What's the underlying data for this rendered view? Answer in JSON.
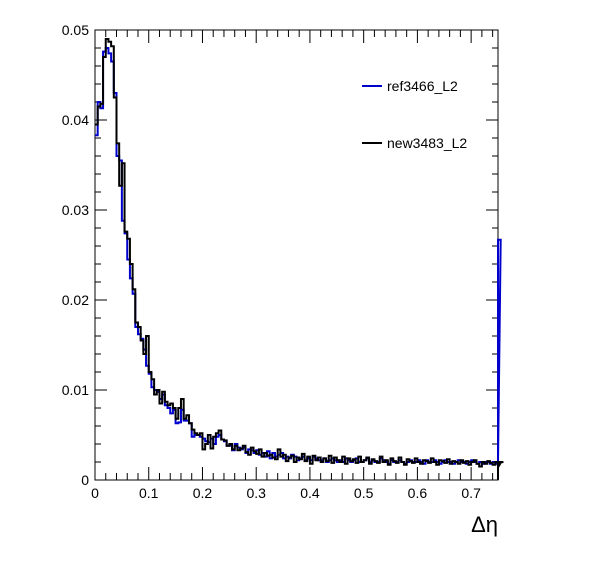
{
  "chart_data": {
    "type": "histogram",
    "title": "",
    "xlabel": "Δη",
    "ylabel": "",
    "xlim": [
      0,
      0.75
    ],
    "ylim": [
      0,
      0.05
    ],
    "bin_width": 0.005,
    "x_tick_labels": [
      "0",
      "0.1",
      "0.2",
      "0.3",
      "0.4",
      "0.5",
      "0.6",
      "0.7"
    ],
    "x_tick_values": [
      0,
      0.1,
      0.2,
      0.3,
      0.4,
      0.5,
      0.6,
      0.7
    ],
    "y_tick_labels": [
      "0",
      "0.01",
      "0.02",
      "0.03",
      "0.04",
      "0.05"
    ],
    "y_tick_values": [
      0,
      0.01,
      0.02,
      0.03,
      0.04,
      0.05
    ],
    "legend_position": "top-right",
    "series": [
      {
        "name": "ref3466_L2",
        "color": "#0000cc",
        "values": [
          0.0383,
          0.042,
          0.0413,
          0.0476,
          0.048,
          0.0474,
          0.0465,
          0.043,
          0.036,
          0.0355,
          0.0288,
          0.0274,
          0.0245,
          0.0224,
          0.0207,
          0.017,
          0.0162,
          0.0157,
          0.0145,
          0.0127,
          0.0118,
          0.0103,
          0.01,
          0.0098,
          0.009,
          0.0095,
          0.0083,
          0.008,
          0.0074,
          0.0078,
          0.0063,
          0.0064,
          0.0078,
          0.0066,
          0.0066,
          0.0063,
          0.0048,
          0.005,
          0.005,
          0.0048,
          0.0046,
          0.0043,
          0.0042,
          0.0046,
          0.004,
          0.0048,
          0.005,
          0.0045,
          0.0043,
          0.0038,
          0.0038,
          0.0033,
          0.004,
          0.0036,
          0.0034,
          0.0036,
          0.003,
          0.0034,
          0.0033,
          0.003,
          0.0033,
          0.0028,
          0.003,
          0.0026,
          0.0032,
          0.0024,
          0.003,
          0.0026,
          0.0028,
          0.003,
          0.0024,
          0.0026,
          0.0024,
          0.0028,
          0.0026,
          0.0022,
          0.0024,
          0.0026,
          0.0022,
          0.0024,
          0.0022,
          0.0026,
          0.0024,
          0.0022,
          0.0022,
          0.0024,
          0.002,
          0.0022,
          0.0024,
          0.0022,
          0.002,
          0.0022,
          0.002,
          0.0024,
          0.0022,
          0.002,
          0.0022,
          0.0024,
          0.002,
          0.002,
          0.0022,
          0.0024,
          0.002,
          0.0022,
          0.002,
          0.002,
          0.0024,
          0.0022,
          0.002,
          0.0018,
          0.0022,
          0.002,
          0.002,
          0.0022,
          0.002,
          0.0018,
          0.002,
          0.0022,
          0.002,
          0.002,
          0.0022,
          0.002,
          0.0018,
          0.0022,
          0.002,
          0.002,
          0.0022,
          0.002,
          0.0018,
          0.002,
          0.0022,
          0.002,
          0.002,
          0.0018,
          0.002,
          0.0022,
          0.002,
          0.002,
          0.0018,
          0.002,
          0.0022,
          0.002,
          0.0018,
          0.002,
          0.0018,
          0.002,
          0.002,
          0.0018,
          0.002,
          0.0018,
          0.002,
          0.0267
        ]
      },
      {
        "name": "new3483_L2",
        "color": "#000000",
        "values": [
          0.0395,
          0.0415,
          0.0418,
          0.047,
          0.049,
          0.0487,
          0.0482,
          0.0425,
          0.0374,
          0.0327,
          0.0352,
          0.0276,
          0.0268,
          0.024,
          0.0212,
          0.0175,
          0.017,
          0.0155,
          0.014,
          0.016,
          0.012,
          0.0112,
          0.0095,
          0.01,
          0.0085,
          0.0098,
          0.0087,
          0.0083,
          0.0085,
          0.008,
          0.0068,
          0.008,
          0.009,
          0.0068,
          0.0072,
          0.0063,
          0.0056,
          0.0052,
          0.005,
          0.0052,
          0.0034,
          0.004,
          0.005,
          0.0035,
          0.0048,
          0.0052,
          0.0055,
          0.0045,
          0.0044,
          0.0038,
          0.004,
          0.0034,
          0.0038,
          0.0033,
          0.0035,
          0.0038,
          0.0031,
          0.0028,
          0.0036,
          0.0032,
          0.0029,
          0.0034,
          0.0026,
          0.003,
          0.0027,
          0.0028,
          0.0025,
          0.0023,
          0.0034,
          0.0026,
          0.0028,
          0.0021,
          0.0025,
          0.0027,
          0.002,
          0.0025,
          0.0023,
          0.0029,
          0.0021,
          0.0026,
          0.0018,
          0.0027,
          0.0022,
          0.0025,
          0.002,
          0.0024,
          0.0021,
          0.0027,
          0.0019,
          0.0025,
          0.0022,
          0.002,
          0.0026,
          0.0018,
          0.0024,
          0.0021,
          0.0023,
          0.0019,
          0.0026,
          0.002,
          0.0022,
          0.0025,
          0.0018,
          0.0023,
          0.0021,
          0.0019,
          0.0026,
          0.002,
          0.0022,
          0.0017,
          0.0024,
          0.0021,
          0.0019,
          0.0025,
          0.002,
          0.0017,
          0.0023,
          0.0021,
          0.0019,
          0.0024,
          0.002,
          0.0018,
          0.0022,
          0.0021,
          0.0019,
          0.0024,
          0.002,
          0.0017,
          0.0022,
          0.0021,
          0.0019,
          0.0023,
          0.0018,
          0.0021,
          0.002,
          0.0018,
          0.0022,
          0.0019,
          0.0021,
          0.0017,
          0.002,
          0.0022,
          0.0018,
          0.0015,
          0.002,
          0.0018,
          0.0021,
          0.0019,
          0.0017,
          0.002,
          0.0014,
          0.0019,
          0.002
        ]
      }
    ]
  }
}
